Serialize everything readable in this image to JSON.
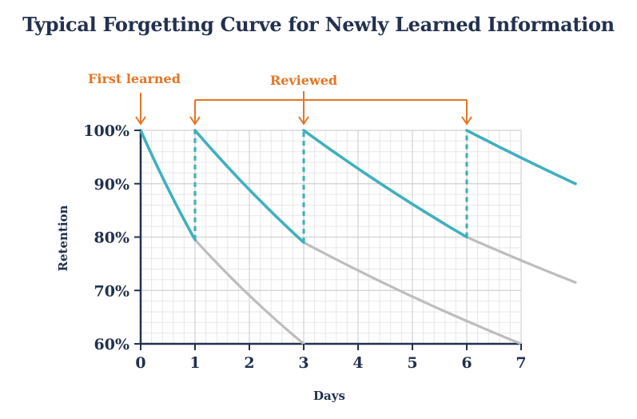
{
  "chart_data": {
    "type": "line",
    "title": "Typical Forgetting Curve for Newly Learned Information",
    "xlabel": "Days",
    "ylabel": "Retention",
    "xlim": [
      0,
      8
    ],
    "ylim": [
      60,
      100
    ],
    "x_ticks": [
      0,
      1,
      2,
      3,
      4,
      5,
      6,
      7
    ],
    "y_ticks": [
      "60%",
      "70%",
      "80%",
      "90%",
      "100%"
    ],
    "grid": true,
    "review_days": [
      1,
      3,
      6
    ],
    "annotations": [
      {
        "text": "First learned",
        "day": 0
      },
      {
        "text": "Reviewed",
        "days": [
          1,
          3,
          6
        ]
      }
    ],
    "series": [
      {
        "role": "retention-with-reviews",
        "color": "#3fb0bf",
        "segments": [
          {
            "x": [
              0,
              1
            ],
            "y": [
              100,
              79.5
            ]
          },
          {
            "x": [
              1,
              3
            ],
            "y": [
              100,
              79
            ]
          },
          {
            "x": [
              3,
              6
            ],
            "y": [
              100,
              80
            ]
          },
          {
            "x": [
              6,
              8
            ],
            "y": [
              100,
              90
            ]
          }
        ]
      },
      {
        "role": "forgetting-without-review",
        "color": "#bdbdbd",
        "segments": [
          {
            "x": [
              1,
              3
            ],
            "y": [
              79.5,
              60
            ]
          },
          {
            "x": [
              3,
              7
            ],
            "y": [
              79,
              60
            ]
          },
          {
            "x": [
              6,
              8
            ],
            "y": [
              80,
              71.5
            ]
          }
        ]
      }
    ]
  }
}
